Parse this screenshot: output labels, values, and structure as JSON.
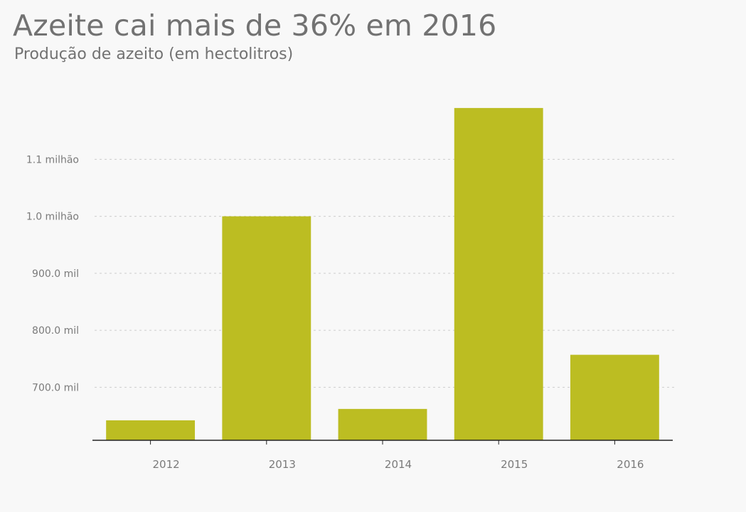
{
  "chart_data": {
    "type": "bar",
    "title": "Azeite cai mais de 36% em 2016",
    "subtitle": "Produção de azeito (em hectolitros)",
    "xlabel": "",
    "ylabel": "",
    "categories": [
      "2012",
      "2013",
      "2014",
      "2015",
      "2016"
    ],
    "values": [
      642000,
      1000000,
      662000,
      1190000,
      757000
    ],
    "ylim": [
      607000,
      1230000
    ],
    "yticks": [
      {
        "value": 700000,
        "label": "700.0 mil"
      },
      {
        "value": 800000,
        "label": "800.0 mil"
      },
      {
        "value": 900000,
        "label": "900.0 mil"
      },
      {
        "value": 1000000,
        "label": "1.0 milhão"
      },
      {
        "value": 1100000,
        "label": "1.1 milhão"
      }
    ],
    "grid": true,
    "legend": "none",
    "colors": {
      "bar": "#bcbd22",
      "axis": "#222222",
      "grid": "#cccccc",
      "text": "#727272"
    }
  }
}
